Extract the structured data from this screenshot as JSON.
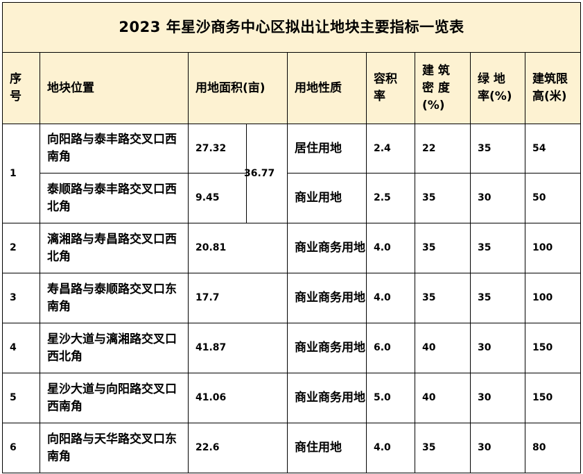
{
  "title": "2023 年星沙商务中心区拟出让地块主要指标一览表",
  "header": {
    "seq": "序\n号",
    "location": "地块位置",
    "area": "用地面积(亩)",
    "nature": "用地性质",
    "far": "容积\n率",
    "density": "建 筑\n密 度\n(%)",
    "green": "绿 地\n率(%)",
    "height": "建筑限\n高(米)"
  },
  "rows": [
    {
      "seq": "1",
      "location": "向阳路与泰丰路交叉口西南角",
      "area": "27.32",
      "area_total": "36.77",
      "nature": "居住用地",
      "far": "2.4",
      "density": "22",
      "green": "35",
      "height": "54"
    },
    {
      "location": "泰顺路与泰丰路交叉口西北角",
      "area": "9.45",
      "nature": "商业用地",
      "far": "2.5",
      "density": "35",
      "green": "30",
      "height": "50"
    },
    {
      "seq": "2",
      "location": "漓湘路与寿昌路交叉口西北角",
      "area": "20.81",
      "nature": "商业商务用地",
      "far": "4.0",
      "density": "35",
      "green": "35",
      "height": "100"
    },
    {
      "seq": "3",
      "location": "寿昌路与泰顺路交叉口东南角",
      "area": "17.7",
      "nature": "商业商务用地",
      "far": "4.0",
      "density": "35",
      "green": "35",
      "height": "100"
    },
    {
      "seq": "4",
      "location": "星沙大道与漓湘路交叉口西北角",
      "area": "41.87",
      "nature": "商业商务用地",
      "far": "6.0",
      "density": "40",
      "green": "30",
      "height": "150"
    },
    {
      "seq": "5",
      "location": "星沙大道与向阳路交叉口西南角",
      "area": "41.06",
      "nature": "商业商务用地",
      "far": "5.0",
      "density": "40",
      "green": "30",
      "height": "150"
    },
    {
      "seq": "6",
      "location": "向阳路与天华路交叉口东南角",
      "area": "22.6",
      "nature": "商住用地",
      "far": "4.0",
      "density": "35",
      "green": "30",
      "height": "80"
    }
  ]
}
